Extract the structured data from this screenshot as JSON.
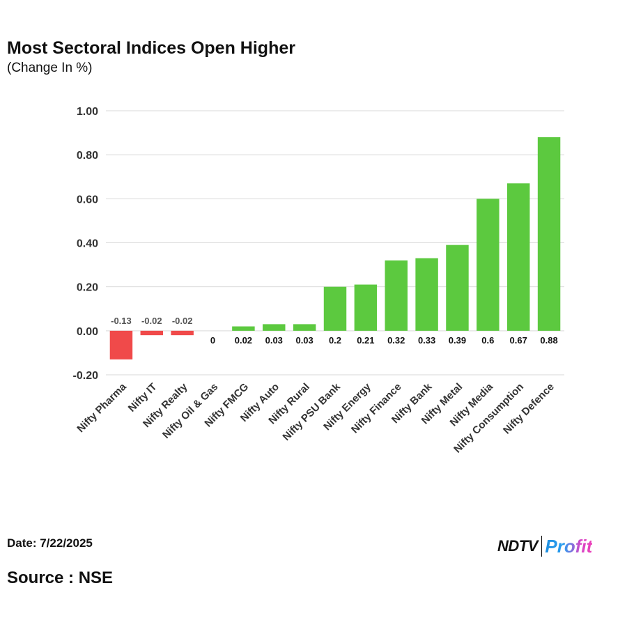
{
  "chart_data": {
    "type": "bar",
    "title": "Most Sectoral Indices Open Higher",
    "subtitle": "(Change In %)",
    "categories": [
      "Nifty Pharma",
      "Nifty IT",
      "Nifty Realty",
      "Nifty Oil & Gas",
      "Nifty FMCG",
      "Nifty Auto",
      "Nifty Rural",
      "Nifty PSU Bank",
      "Nifty Energy",
      "Nifty Finance",
      "Nifty Bank",
      "Nifty Metal",
      "Nifty Media",
      "Nifty Consumption",
      "Nifty Defence"
    ],
    "values": [
      -0.13,
      -0.02,
      -0.02,
      0,
      0.02,
      0.03,
      0.03,
      0.2,
      0.21,
      0.32,
      0.33,
      0.39,
      0.6,
      0.67,
      0.88
    ],
    "data_labels": [
      "-0.13",
      "-0.02",
      "-0.02",
      "0",
      "0.02",
      "0.03",
      "0.03",
      "0.2",
      "0.21",
      "0.32",
      "0.33",
      "0.39",
      "0.6",
      "0.67",
      "0.88"
    ],
    "yticks": [
      1.0,
      0.8,
      0.6,
      0.4,
      0.2,
      0.0,
      -0.2
    ],
    "ytick_labels": [
      "1.00",
      "0.80",
      "0.60",
      "0.40",
      "0.20",
      "0.00",
      "-0.20"
    ],
    "ylim": [
      -0.2,
      1.0
    ],
    "xlabel": "",
    "ylabel": "",
    "grid": true,
    "legend": "none",
    "colors": {
      "positive": "#5cc93f",
      "negative": "#f04a4a",
      "grid": "#d9d9d9",
      "label": "#111111",
      "negative_label": "#555555"
    }
  },
  "footer": {
    "date": "Date: 7/22/2025",
    "source": "Source : NSE"
  },
  "brand": {
    "ndtv": "NDTV",
    "profit": "Profit"
  }
}
